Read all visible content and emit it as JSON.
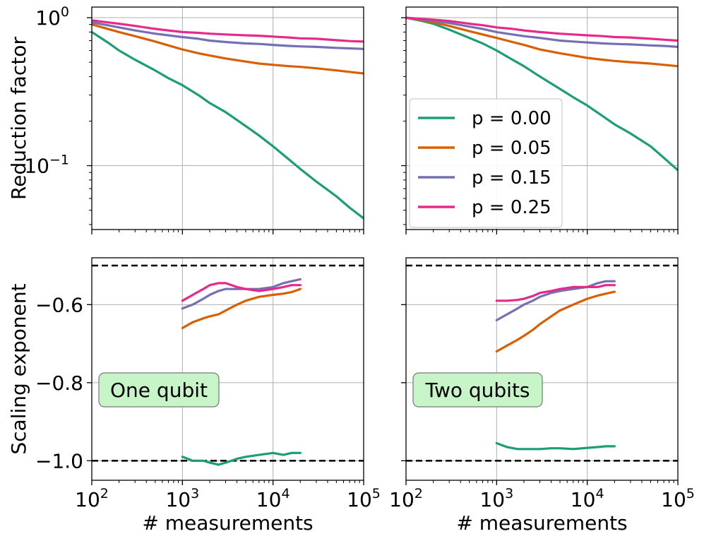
{
  "chart_data": [
    {
      "panel": "top-left",
      "type": "line",
      "xscale": "log",
      "yscale": "log",
      "xlim": [
        100,
        100000
      ],
      "ylim": [
        0.037,
        1.18
      ],
      "xticks": [
        100,
        1000,
        10000,
        100000
      ],
      "yticks": [
        {
          "value": 1.0,
          "label": "10",
          "exp": "0"
        },
        {
          "value": 0.1,
          "label": "10",
          "exp": "−1"
        }
      ],
      "grid": true,
      "ylabel": "Reduction factor",
      "series": [
        {
          "name": "p = 0.00",
          "color": "#1b9e77",
          "x": [
            100,
            150,
            200,
            300,
            500,
            700,
            1000,
            1500,
            2000,
            3000,
            5000,
            7000,
            10000,
            15000,
            20000,
            30000,
            50000,
            70000,
            100000
          ],
          "y": [
            0.8,
            0.68,
            0.6,
            0.52,
            0.44,
            0.39,
            0.35,
            0.3,
            0.265,
            0.23,
            0.185,
            0.16,
            0.135,
            0.11,
            0.095,
            0.078,
            0.062,
            0.052,
            0.044
          ]
        },
        {
          "name": "p = 0.05",
          "color": "#d95f02",
          "x": [
            100,
            150,
            200,
            300,
            500,
            700,
            1000,
            1500,
            2000,
            3000,
            5000,
            7000,
            10000,
            15000,
            20000,
            30000,
            50000,
            70000,
            100000
          ],
          "y": [
            0.9,
            0.84,
            0.8,
            0.75,
            0.69,
            0.65,
            0.61,
            0.575,
            0.555,
            0.53,
            0.505,
            0.49,
            0.48,
            0.47,
            0.465,
            0.455,
            0.44,
            0.43,
            0.42
          ]
        },
        {
          "name": "p = 0.15",
          "color": "#7570b3",
          "x": [
            100,
            150,
            200,
            300,
            500,
            700,
            1000,
            1500,
            2000,
            3000,
            5000,
            7000,
            10000,
            15000,
            20000,
            30000,
            50000,
            70000,
            100000
          ],
          "y": [
            0.93,
            0.89,
            0.86,
            0.82,
            0.78,
            0.76,
            0.74,
            0.72,
            0.7,
            0.685,
            0.67,
            0.665,
            0.655,
            0.645,
            0.64,
            0.635,
            0.625,
            0.62,
            0.615
          ]
        },
        {
          "name": "p = 0.25",
          "color": "#e7298a",
          "x": [
            100,
            150,
            200,
            300,
            500,
            700,
            1000,
            1500,
            2000,
            3000,
            5000,
            7000,
            10000,
            15000,
            20000,
            30000,
            50000,
            70000,
            100000
          ],
          "y": [
            0.96,
            0.93,
            0.91,
            0.88,
            0.84,
            0.82,
            0.8,
            0.79,
            0.78,
            0.77,
            0.76,
            0.755,
            0.745,
            0.735,
            0.725,
            0.72,
            0.705,
            0.695,
            0.69
          ]
        }
      ]
    },
    {
      "panel": "top-right",
      "type": "line",
      "xscale": "log",
      "yscale": "log",
      "xlim": [
        100,
        100000
      ],
      "ylim": [
        0.037,
        1.18
      ],
      "xticks": [
        100,
        1000,
        10000,
        100000
      ],
      "grid": true,
      "legend": "center-left",
      "series": [
        {
          "name": "p = 0.00",
          "color": "#1b9e77",
          "x": [
            100,
            150,
            200,
            300,
            500,
            700,
            1000,
            1500,
            2000,
            3000,
            5000,
            7000,
            10000,
            15000,
            20000,
            30000,
            50000,
            70000,
            100000
          ],
          "y": [
            1.0,
            0.95,
            0.91,
            0.83,
            0.73,
            0.67,
            0.6,
            0.52,
            0.47,
            0.4,
            0.33,
            0.29,
            0.255,
            0.215,
            0.19,
            0.165,
            0.135,
            0.113,
            0.093
          ]
        },
        {
          "name": "p = 0.05",
          "color": "#d95f02",
          "x": [
            100,
            150,
            200,
            300,
            500,
            700,
            1000,
            1500,
            2000,
            3000,
            5000,
            7000,
            10000,
            15000,
            20000,
            30000,
            50000,
            70000,
            100000
          ],
          "y": [
            1.0,
            0.96,
            0.93,
            0.88,
            0.81,
            0.77,
            0.73,
            0.685,
            0.655,
            0.61,
            0.575,
            0.555,
            0.535,
            0.52,
            0.51,
            0.5,
            0.49,
            0.48,
            0.47
          ]
        },
        {
          "name": "p = 0.15",
          "color": "#7570b3",
          "x": [
            100,
            150,
            200,
            300,
            500,
            700,
            1000,
            1500,
            2000,
            3000,
            5000,
            7000,
            10000,
            15000,
            20000,
            30000,
            50000,
            70000,
            100000
          ],
          "y": [
            1.0,
            0.97,
            0.95,
            0.92,
            0.87,
            0.84,
            0.8,
            0.77,
            0.75,
            0.73,
            0.7,
            0.69,
            0.68,
            0.67,
            0.665,
            0.66,
            0.65,
            0.645,
            0.635
          ]
        },
        {
          "name": "p = 0.25",
          "color": "#e7298a",
          "x": [
            100,
            150,
            200,
            300,
            500,
            700,
            1000,
            1500,
            2000,
            3000,
            5000,
            7000,
            10000,
            15000,
            20000,
            30000,
            50000,
            70000,
            100000
          ],
          "y": [
            1.0,
            0.98,
            0.97,
            0.95,
            0.91,
            0.89,
            0.86,
            0.84,
            0.82,
            0.8,
            0.78,
            0.77,
            0.76,
            0.75,
            0.74,
            0.735,
            0.72,
            0.71,
            0.7
          ]
        }
      ]
    },
    {
      "panel": "bottom-left",
      "type": "line",
      "xscale": "log",
      "yscale": "linear",
      "xlim": [
        100,
        100000
      ],
      "ylim": [
        -1.05,
        -0.48
      ],
      "xticks": [
        100,
        1000,
        10000,
        100000
      ],
      "yticks": [
        {
          "value": -0.6,
          "label": "−0.6"
        },
        {
          "value": -0.8,
          "label": "−0.8"
        },
        {
          "value": -1.0,
          "label": "−1.0"
        }
      ],
      "grid": true,
      "reference_lines": [
        -0.5,
        -1.0
      ],
      "xlabel": "# measurements",
      "ylabel": "Scaling exponent",
      "series": [
        {
          "name": "p = 0.00",
          "color": "#1b9e77",
          "x": [
            1000,
            1300,
            1700,
            2000,
            2500,
            3000,
            4000,
            5000,
            7000,
            10000,
            13000,
            16000,
            20000
          ],
          "y": [
            -0.99,
            -1.0,
            -1.0,
            -1.005,
            -1.01,
            -1.005,
            -0.995,
            -0.99,
            -0.985,
            -0.98,
            -0.985,
            -0.98,
            -0.98
          ]
        },
        {
          "name": "p = 0.05",
          "color": "#d95f02",
          "x": [
            1000,
            1300,
            1700,
            2000,
            2500,
            3000,
            4000,
            5000,
            7000,
            10000,
            13000,
            16000,
            20000
          ],
          "y": [
            -0.66,
            -0.645,
            -0.635,
            -0.63,
            -0.625,
            -0.615,
            -0.6,
            -0.59,
            -0.58,
            -0.575,
            -0.572,
            -0.568,
            -0.56
          ]
        },
        {
          "name": "p = 0.15",
          "color": "#7570b3",
          "x": [
            1000,
            1300,
            1700,
            2000,
            2500,
            3000,
            4000,
            5000,
            7000,
            10000,
            13000,
            16000,
            20000
          ],
          "y": [
            -0.61,
            -0.6,
            -0.585,
            -0.575,
            -0.565,
            -0.56,
            -0.56,
            -0.56,
            -0.56,
            -0.555,
            -0.545,
            -0.54,
            -0.535
          ]
        },
        {
          "name": "p = 0.25",
          "color": "#e7298a",
          "x": [
            1000,
            1300,
            1700,
            2000,
            2500,
            3000,
            4000,
            5000,
            7000,
            10000,
            13000,
            16000,
            20000
          ],
          "y": [
            -0.59,
            -0.575,
            -0.56,
            -0.55,
            -0.545,
            -0.545,
            -0.555,
            -0.56,
            -0.565,
            -0.56,
            -0.555,
            -0.55,
            -0.55
          ]
        }
      ]
    },
    {
      "panel": "bottom-right",
      "type": "line",
      "xscale": "log",
      "yscale": "linear",
      "xlim": [
        100,
        100000
      ],
      "ylim": [
        -1.05,
        -0.48
      ],
      "xticks": [
        100,
        1000,
        10000,
        100000
      ],
      "grid": true,
      "reference_lines": [
        -0.5,
        -1.0
      ],
      "xlabel": "# measurements",
      "series": [
        {
          "name": "p = 0.00",
          "color": "#1b9e77",
          "x": [
            1000,
            1300,
            1700,
            2000,
            2500,
            3000,
            4000,
            5000,
            7000,
            10000,
            13000,
            16000,
            20000
          ],
          "y": [
            -0.955,
            -0.965,
            -0.97,
            -0.97,
            -0.97,
            -0.97,
            -0.968,
            -0.968,
            -0.97,
            -0.967,
            -0.965,
            -0.963,
            -0.963
          ]
        },
        {
          "name": "p = 0.05",
          "color": "#d95f02",
          "x": [
            1000,
            1300,
            1700,
            2000,
            2500,
            3000,
            4000,
            5000,
            7000,
            10000,
            13000,
            16000,
            20000
          ],
          "y": [
            -0.72,
            -0.705,
            -0.69,
            -0.68,
            -0.665,
            -0.65,
            -0.63,
            -0.615,
            -0.6,
            -0.585,
            -0.577,
            -0.572,
            -0.567
          ]
        },
        {
          "name": "p = 0.15",
          "color": "#7570b3",
          "x": [
            1000,
            1300,
            1700,
            2000,
            2500,
            3000,
            4000,
            5000,
            7000,
            10000,
            13000,
            16000,
            20000
          ],
          "y": [
            -0.64,
            -0.625,
            -0.61,
            -0.6,
            -0.59,
            -0.58,
            -0.57,
            -0.565,
            -0.56,
            -0.555,
            -0.545,
            -0.54,
            -0.54
          ]
        },
        {
          "name": "p = 0.25",
          "color": "#e7298a",
          "x": [
            1000,
            1300,
            1700,
            2000,
            2500,
            3000,
            4000,
            5000,
            7000,
            10000,
            13000,
            16000,
            20000
          ],
          "y": [
            -0.59,
            -0.59,
            -0.588,
            -0.585,
            -0.578,
            -0.57,
            -0.565,
            -0.56,
            -0.555,
            -0.555,
            -0.555,
            -0.55,
            -0.55
          ]
        }
      ]
    }
  ],
  "legend": {
    "entries": [
      {
        "label": "p = 0.00",
        "color": "#1b9e77"
      },
      {
        "label": "p = 0.05",
        "color": "#d95f02"
      },
      {
        "label": "p = 0.15",
        "color": "#7570b3"
      },
      {
        "label": "p = 0.25",
        "color": "#e7298a"
      }
    ]
  },
  "annotations": [
    {
      "panel": "bottom-left",
      "text": "One qubit",
      "box_color": "#c8f5c8"
    },
    {
      "panel": "bottom-right",
      "text": "Two qubits",
      "box_color": "#c8f5c8"
    }
  ],
  "x_tick_labels": [
    {
      "base": "10",
      "exp": "2"
    },
    {
      "base": "10",
      "exp": "3"
    },
    {
      "base": "10",
      "exp": "4"
    },
    {
      "base": "10",
      "exp": "5"
    }
  ]
}
